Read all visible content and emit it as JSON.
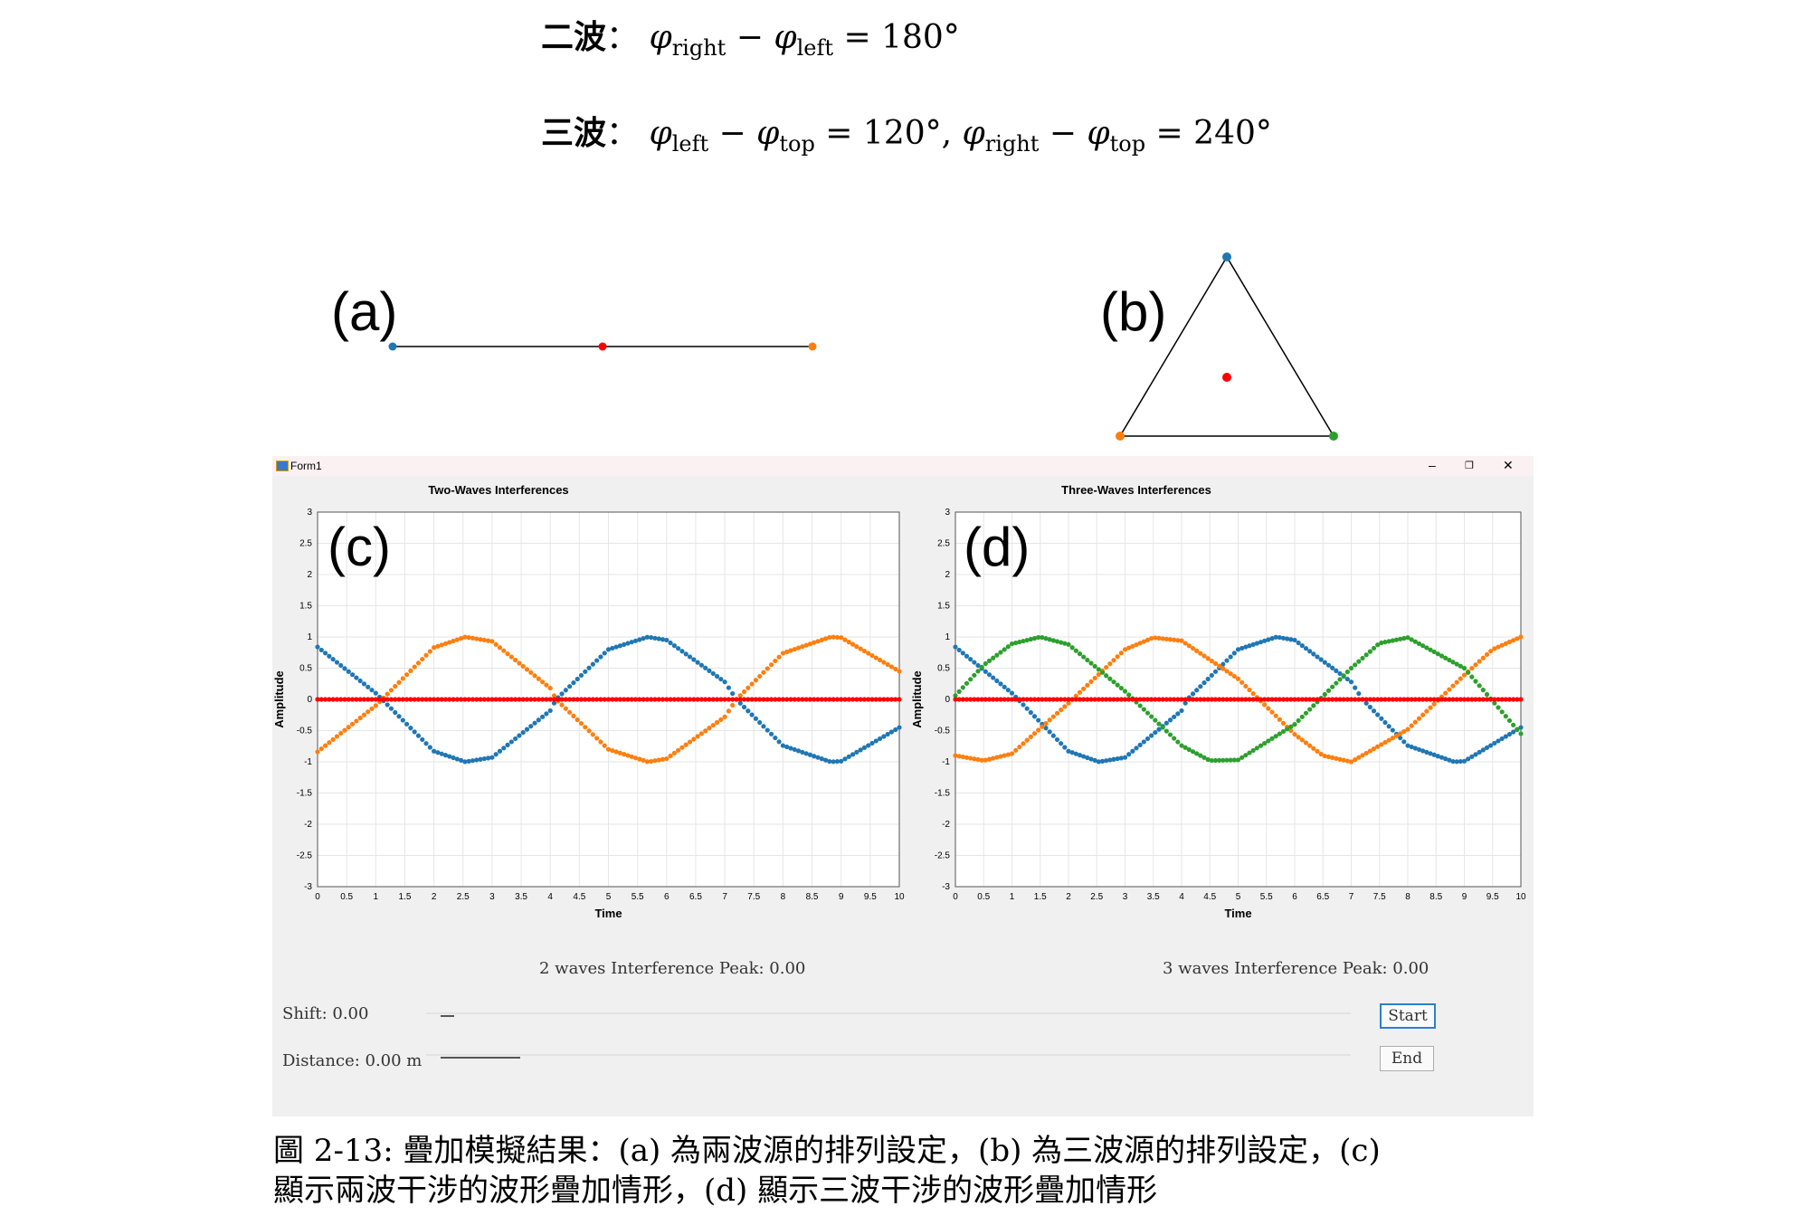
{
  "equations": {
    "two_wave": {
      "lead": "二波",
      "sep": "：",
      "phi": "φ",
      "s1": "right",
      "minus": " − ",
      "s2": "left",
      "rest": " = 180°"
    },
    "three_wave": {
      "lead": "三波",
      "sep": "：",
      "phi": "φ",
      "a1": "left",
      "minus": " − ",
      "a2": "top",
      "mid": " = 120°,   ",
      "b1": "right",
      "b2": "top",
      "rest": " = 240°"
    }
  },
  "panels": {
    "a": "(a)",
    "b": "(b)",
    "c": "(c)",
    "d": "(d)"
  },
  "colors": {
    "blue": "#1f77b4",
    "orange": "#ff7f0e",
    "green": "#2ca02c",
    "red": "#ff0000",
    "grid": "#e6e6e6"
  },
  "window": {
    "title": "Form1",
    "minimize": "–",
    "restore": "❐",
    "close": "✕",
    "minimize_icon": "minimize-icon",
    "restore_icon": "restore-icon",
    "close_icon": "close-icon",
    "app_icon": "app-icon"
  },
  "chart_data": [
    {
      "type": "scatter",
      "title": "Two-Waves Interferences",
      "xlabel": "Time",
      "ylabel": "Amplitude",
      "xlim": [
        0,
        10
      ],
      "ylim": [
        -3,
        3
      ],
      "x_ticks": [
        "0",
        "0.5",
        "1",
        "1.5",
        "2",
        "2.5",
        "3",
        "3.5",
        "4",
        "4.5",
        "5",
        "5.5",
        "6",
        "6.5",
        "7",
        "7.5",
        "8",
        "8.5",
        "9",
        "9.5",
        "10"
      ],
      "y_ticks": [
        "-3",
        "-2.5",
        "-2",
        "-1.5",
        "-1",
        "-0.5",
        "0",
        "0.5",
        "1",
        "1.5",
        "2",
        "2.5",
        "3"
      ],
      "grid": true,
      "series": [
        {
          "color": "blue",
          "x": [
            0,
            1,
            2,
            2.54,
            3,
            4,
            4.1,
            5,
            5.68,
            6,
            7,
            7.2,
            8,
            8.82,
            9,
            10
          ],
          "y": [
            0.84,
            0.1,
            -0.83,
            -1,
            -0.93,
            -0.18,
            0,
            0.8,
            1,
            0.95,
            0.28,
            0,
            -0.74,
            -1,
            -0.99,
            -0.45
          ]
        },
        {
          "color": "orange",
          "x": [
            0,
            1,
            2,
            2.54,
            3,
            4,
            4.1,
            5,
            5.68,
            6,
            7,
            7.2,
            8,
            8.82,
            9,
            10
          ],
          "y": [
            -0.84,
            -0.1,
            0.83,
            1,
            0.93,
            0.18,
            0,
            -0.8,
            -1,
            -0.95,
            -0.28,
            0,
            0.74,
            1,
            0.99,
            0.45
          ]
        },
        {
          "color": "red",
          "x": [
            0,
            10
          ],
          "y": [
            0,
            0
          ]
        }
      ]
    },
    {
      "type": "scatter",
      "title": "Three-Waves Interferences",
      "xlabel": "Time",
      "ylabel": "Amplitude",
      "xlim": [
        0,
        10
      ],
      "ylim": [
        -3,
        3
      ],
      "x_ticks": [
        "0",
        "0.5",
        "1",
        "1.5",
        "2",
        "2.5",
        "3",
        "3.5",
        "4",
        "4.5",
        "5",
        "5.5",
        "6",
        "6.5",
        "7",
        "7.5",
        "8",
        "8.5",
        "9",
        "9.5",
        "10"
      ],
      "y_ticks": [
        "-3",
        "-2.5",
        "-2",
        "-1.5",
        "-1",
        "-0.5",
        "0",
        "0.5",
        "1",
        "1.5",
        "2",
        "2.5",
        "3"
      ],
      "grid": true,
      "series": [
        {
          "color": "blue",
          "x": [
            0,
            1,
            2,
            2.54,
            3,
            4,
            4.1,
            5,
            5.68,
            6,
            7,
            7.2,
            8,
            8.82,
            9,
            10
          ],
          "y": [
            0.84,
            0.1,
            -0.83,
            -1,
            -0.93,
            -0.18,
            0,
            0.8,
            1,
            0.95,
            0.28,
            0,
            -0.74,
            -1,
            -0.99,
            -0.45
          ]
        },
        {
          "color": "orange",
          "x": [
            0,
            0.5,
            1,
            2,
            3,
            3.5,
            4,
            5,
            6,
            6.5,
            7,
            8,
            9,
            9.5,
            10
          ],
          "y": [
            -0.9,
            -0.98,
            -0.87,
            -0.06,
            0.8,
            0.99,
            0.94,
            0.33,
            -0.56,
            -0.9,
            -1,
            -0.48,
            0.39,
            0.8,
            1
          ]
        },
        {
          "color": "green",
          "x": [
            0,
            0.5,
            1,
            1.5,
            2,
            3,
            4,
            4.5,
            5,
            6,
            7,
            7.5,
            8,
            9,
            10
          ],
          "y": [
            0.06,
            0.55,
            0.89,
            1,
            0.88,
            0.13,
            -0.74,
            -0.98,
            -0.97,
            -0.4,
            0.5,
            0.9,
            0.99,
            0.5,
            -0.55
          ]
        },
        {
          "color": "red",
          "x": [
            0,
            10
          ],
          "y": [
            0,
            0
          ]
        }
      ]
    }
  ],
  "status": {
    "peak2": "2 waves Interference Peak: 0.00",
    "peak3": "3 waves Interference Peak: 0.00",
    "shift": "Shift: 0.00",
    "distance": "Distance: 0.00 m",
    "shift_value": 0.0,
    "distance_value": 0.0
  },
  "buttons": {
    "start": "Start",
    "end": "End"
  },
  "caption": {
    "line1": "圖 2-13: 疊加模擬結果：(a) 為兩波源的排列設定，(b) 為三波源的排列設定，(c)",
    "line2": "顯示兩波干涉的波形疊加情形，(d) 顯示三波干涉的波形疊加情形"
  }
}
